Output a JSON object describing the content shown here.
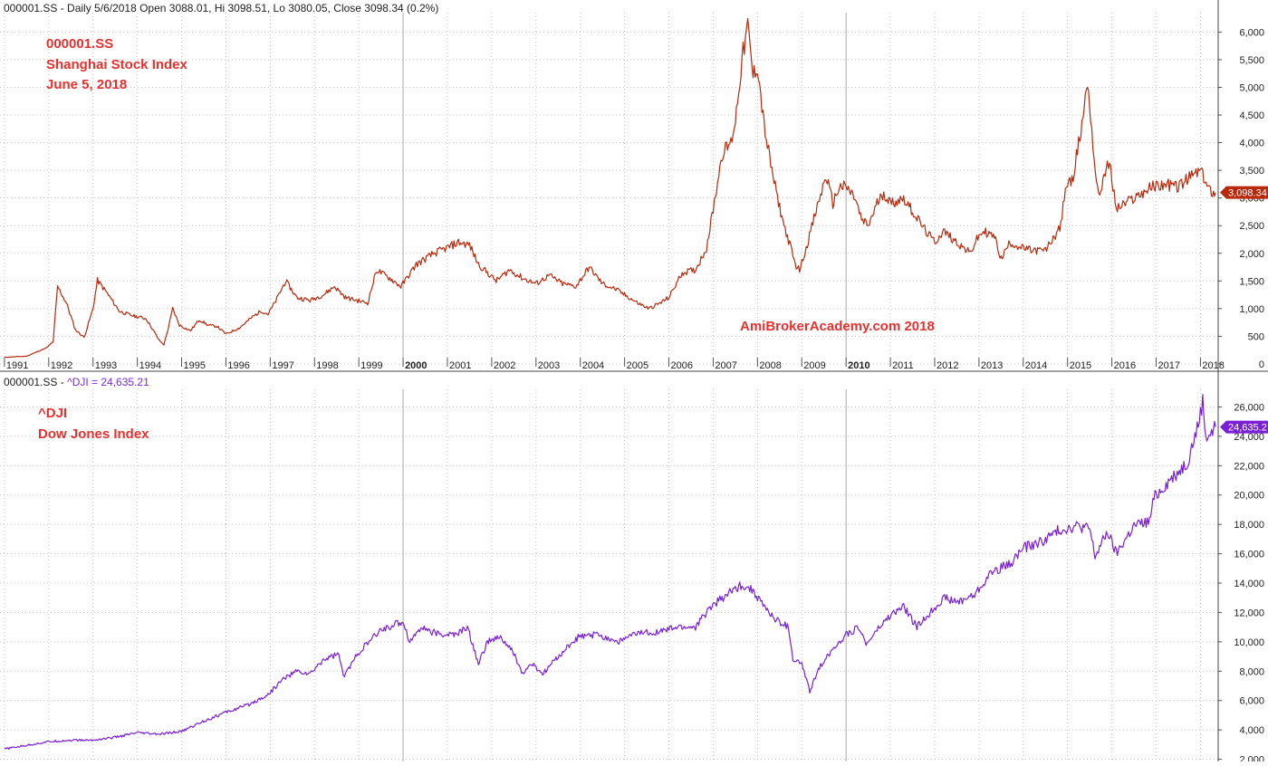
{
  "header": {
    "pane1_text": "000001.SS - Daily 5/6/2018 Open 3088.01, Hi 3098.51, Lo 3080.05, Close 3098.34 (0.2%)",
    "pane2_prefix": "000001.SS - ",
    "pane2_symbol": "^DJI = 24,635.21"
  },
  "annotations": {
    "top": [
      "000001.SS",
      "Shanghai Stock Index",
      "June 5, 2018"
    ],
    "bottom": [
      "^DJI",
      "Dow Jones Index"
    ],
    "watermark": "AmiBrokerAcademy.com  2018"
  },
  "chart_data": [
    {
      "type": "line",
      "series": [
        {
          "name": "000001.SS",
          "color": "#b8290c",
          "last_value_label": "3,098.34",
          "points": [
            [
              1991.0,
              120
            ],
            [
              1991.5,
              140
            ],
            [
              1991.95,
              290
            ],
            [
              1992.1,
              400
            ],
            [
              1992.2,
              1400
            ],
            [
              1992.4,
              1100
            ],
            [
              1992.6,
              620
            ],
            [
              1992.8,
              480
            ],
            [
              1993.0,
              1000
            ],
            [
              1993.1,
              1510
            ],
            [
              1993.3,
              1300
            ],
            [
              1993.6,
              950
            ],
            [
              1993.9,
              870
            ],
            [
              1994.2,
              820
            ],
            [
              1994.5,
              420
            ],
            [
              1994.6,
              350
            ],
            [
              1994.7,
              650
            ],
            [
              1994.8,
              1000
            ],
            [
              1994.95,
              700
            ],
            [
              1995.2,
              600
            ],
            [
              1995.4,
              800
            ],
            [
              1995.6,
              700
            ],
            [
              1995.8,
              680
            ],
            [
              1996.0,
              540
            ],
            [
              1996.3,
              650
            ],
            [
              1996.6,
              850
            ],
            [
              1996.8,
              960
            ],
            [
              1996.95,
              900
            ],
            [
              1997.1,
              1100
            ],
            [
              1997.35,
              1500
            ],
            [
              1997.6,
              1200
            ],
            [
              1997.9,
              1150
            ],
            [
              1998.2,
              1250
            ],
            [
              1998.45,
              1400
            ],
            [
              1998.7,
              1200
            ],
            [
              1998.95,
              1150
            ],
            [
              1999.2,
              1100
            ],
            [
              1999.4,
              1700
            ],
            [
              1999.7,
              1550
            ],
            [
              1999.95,
              1400
            ],
            [
              2000.3,
              1800
            ],
            [
              2000.7,
              2000
            ],
            [
              2001.0,
              2100
            ],
            [
              2001.25,
              2200
            ],
            [
              2001.5,
              2150
            ],
            [
              2001.7,
              1800
            ],
            [
              2001.9,
              1650
            ],
            [
              2002.1,
              1500
            ],
            [
              2002.4,
              1700
            ],
            [
              2002.7,
              1550
            ],
            [
              2003.0,
              1450
            ],
            [
              2003.3,
              1600
            ],
            [
              2003.6,
              1450
            ],
            [
              2003.9,
              1400
            ],
            [
              2004.2,
              1750
            ],
            [
              2004.5,
              1450
            ],
            [
              2004.8,
              1350
            ],
            [
              2005.0,
              1250
            ],
            [
              2005.3,
              1100
            ],
            [
              2005.55,
              1000
            ],
            [
              2005.8,
              1100
            ],
            [
              2006.0,
              1200
            ],
            [
              2006.3,
              1650
            ],
            [
              2006.6,
              1700
            ],
            [
              2006.85,
              2100
            ],
            [
              2007.0,
              2800
            ],
            [
              2007.2,
              3800
            ],
            [
              2007.4,
              4000
            ],
            [
              2007.5,
              4400
            ],
            [
              2007.65,
              5500
            ],
            [
              2007.78,
              6100
            ],
            [
              2007.9,
              5200
            ],
            [
              2008.0,
              5400
            ],
            [
              2008.15,
              4300
            ],
            [
              2008.3,
              3600
            ],
            [
              2008.45,
              3000
            ],
            [
              2008.6,
              2500
            ],
            [
              2008.75,
              2100
            ],
            [
              2008.85,
              1800
            ],
            [
              2008.95,
              1700
            ],
            [
              2009.1,
              2100
            ],
            [
              2009.3,
              2700
            ],
            [
              2009.55,
              3400
            ],
            [
              2009.7,
              2900
            ],
            [
              2009.85,
              3200
            ],
            [
              2010.0,
              3200
            ],
            [
              2010.2,
              3000
            ],
            [
              2010.35,
              2600
            ],
            [
              2010.5,
              2500
            ],
            [
              2010.7,
              2900
            ],
            [
              2010.85,
              3100
            ],
            [
              2011.0,
              2900
            ],
            [
              2011.3,
              3000
            ],
            [
              2011.55,
              2700
            ],
            [
              2011.8,
              2400
            ],
            [
              2012.0,
              2200
            ],
            [
              2012.2,
              2400
            ],
            [
              2012.5,
              2200
            ],
            [
              2012.8,
              2000
            ],
            [
              2012.95,
              2250
            ],
            [
              2013.1,
              2400
            ],
            [
              2013.35,
              2300
            ],
            [
              2013.5,
              1900
            ],
            [
              2013.7,
              2200
            ],
            [
              2013.95,
              2100
            ],
            [
              2014.2,
              2050
            ],
            [
              2014.5,
              2050
            ],
            [
              2014.7,
              2300
            ],
            [
              2014.85,
              2500
            ],
            [
              2014.95,
              3200
            ],
            [
              2015.1,
              3300
            ],
            [
              2015.3,
              4200
            ],
            [
              2015.45,
              5100
            ],
            [
              2015.52,
              4500
            ],
            [
              2015.6,
              3700
            ],
            [
              2015.7,
              3000
            ],
            [
              2015.85,
              3500
            ],
            [
              2015.95,
              3600
            ],
            [
              2016.1,
              2800
            ],
            [
              2016.3,
              2900
            ],
            [
              2016.6,
              3050
            ],
            [
              2016.9,
              3200
            ],
            [
              2017.2,
              3250
            ],
            [
              2017.5,
              3200
            ],
            [
              2017.8,
              3400
            ],
            [
              2018.0,
              3500
            ],
            [
              2018.1,
              3300
            ],
            [
              2018.2,
              3150
            ],
            [
              2018.34,
              3098.34
            ]
          ]
        }
      ],
      "xlim": [
        1990.9,
        2018.4
      ],
      "ylim": [
        -50,
        6350
      ],
      "yticks": [
        0,
        500,
        1000,
        1500,
        2000,
        2500,
        3000,
        3500,
        4000,
        4500,
        5000,
        5500,
        6000
      ],
      "ytick_labels": [
        "0",
        "500",
        "1,000",
        "1,500",
        "2,000",
        "2,500",
        "3,000",
        "3,500",
        "4,000",
        "4,500",
        "5,000",
        "5,500",
        "6,000"
      ],
      "xtick_labels": [
        "1991",
        "1992",
        "1993",
        "1994",
        "1995",
        "1996",
        "1997",
        "1998",
        "1999",
        "2000",
        "2001",
        "2002",
        "2003",
        "2004",
        "2005",
        "2006",
        "2007",
        "2008",
        "2009",
        "2010",
        "2011",
        "2012",
        "2013",
        "2014",
        "2015",
        "2016",
        "2017",
        "2018"
      ],
      "bold_years": [
        "2000",
        "2010"
      ],
      "grid": true
    },
    {
      "type": "line",
      "series": [
        {
          "name": "^DJI",
          "color": "#7a1fd6",
          "last_value_label": "24,635.2",
          "points": [
            [
              1991.0,
              2700
            ],
            [
              1991.5,
              2950
            ],
            [
              1992.0,
              3200
            ],
            [
              1992.5,
              3300
            ],
            [
              1993.0,
              3300
            ],
            [
              1993.5,
              3500
            ],
            [
              1994.0,
              3800
            ],
            [
              1994.5,
              3700
            ],
            [
              1995.0,
              3900
            ],
            [
              1995.5,
              4600
            ],
            [
              1996.0,
              5200
            ],
            [
              1996.5,
              5700
            ],
            [
              1996.95,
              6400
            ],
            [
              1997.3,
              7500
            ],
            [
              1997.6,
              8000
            ],
            [
              1997.9,
              7800
            ],
            [
              1998.2,
              8800
            ],
            [
              1998.55,
              9200
            ],
            [
              1998.65,
              7600
            ],
            [
              1999.0,
              9300
            ],
            [
              1999.5,
              10800
            ],
            [
              2000.0,
              11400
            ],
            [
              2000.15,
              10000
            ],
            [
              2000.4,
              11000
            ],
            [
              2000.8,
              10500
            ],
            [
              2001.2,
              10500
            ],
            [
              2001.45,
              11000
            ],
            [
              2001.7,
              8500
            ],
            [
              2001.9,
              10000
            ],
            [
              2002.2,
              10300
            ],
            [
              2002.5,
              9200
            ],
            [
              2002.7,
              7800
            ],
            [
              2002.9,
              8500
            ],
            [
              2003.15,
              7800
            ],
            [
              2003.5,
              9000
            ],
            [
              2003.95,
              10300
            ],
            [
              2004.4,
              10500
            ],
            [
              2004.85,
              10000
            ],
            [
              2005.3,
              10600
            ],
            [
              2005.8,
              10700
            ],
            [
              2006.2,
              11000
            ],
            [
              2006.6,
              11000
            ],
            [
              2006.95,
              12400
            ],
            [
              2007.3,
              13200
            ],
            [
              2007.65,
              13900
            ],
            [
              2007.9,
              13500
            ],
            [
              2008.1,
              12600
            ],
            [
              2008.4,
              11500
            ],
            [
              2008.7,
              11000
            ],
            [
              2008.8,
              8800
            ],
            [
              2009.0,
              8500
            ],
            [
              2009.18,
              6600
            ],
            [
              2009.4,
              8300
            ],
            [
              2009.75,
              9700
            ],
            [
              2010.0,
              10500
            ],
            [
              2010.3,
              11000
            ],
            [
              2010.45,
              9800
            ],
            [
              2010.7,
              10800
            ],
            [
              2011.0,
              11800
            ],
            [
              2011.3,
              12400
            ],
            [
              2011.6,
              11000
            ],
            [
              2011.9,
              12000
            ],
            [
              2012.2,
              13000
            ],
            [
              2012.5,
              12700
            ],
            [
              2012.9,
              13200
            ],
            [
              2013.3,
              14800
            ],
            [
              2013.7,
              15300
            ],
            [
              2014.0,
              16400
            ],
            [
              2014.4,
              16800
            ],
            [
              2014.8,
              17600
            ],
            [
              2015.2,
              17900
            ],
            [
              2015.5,
              17700
            ],
            [
              2015.62,
              15800
            ],
            [
              2015.9,
              17500
            ],
            [
              2016.1,
              16000
            ],
            [
              2016.5,
              17900
            ],
            [
              2016.85,
              18200
            ],
            [
              2016.95,
              19800
            ],
            [
              2017.3,
              21000
            ],
            [
              2017.7,
              22200
            ],
            [
              2017.95,
              24800
            ],
            [
              2018.05,
              26400
            ],
            [
              2018.12,
              24000
            ],
            [
              2018.25,
              24200
            ],
            [
              2018.34,
              24635.21
            ]
          ]
        }
      ],
      "xlim": [
        1990.9,
        2018.4
      ],
      "ylim": [
        1850,
        27200
      ],
      "yticks": [
        2000,
        4000,
        6000,
        8000,
        10000,
        12000,
        14000,
        16000,
        18000,
        20000,
        22000,
        24000,
        26000
      ],
      "ytick_labels": [
        "2,000",
        "4,000",
        "6,000",
        "8,000",
        "10,000",
        "12,000",
        "14,000",
        "16,000",
        "18,000",
        "20,000",
        "22,000",
        "24,000",
        "26,000"
      ],
      "grid": true
    }
  ]
}
